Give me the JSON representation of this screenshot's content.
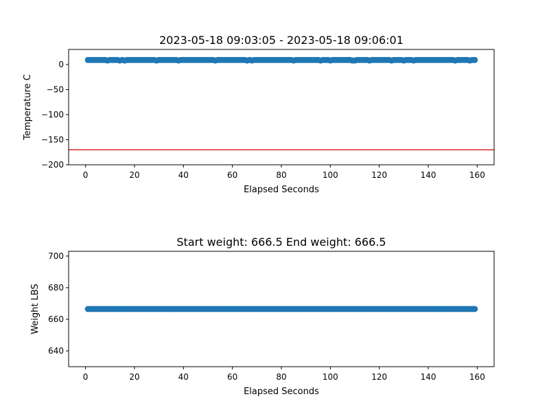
{
  "chart_data": [
    {
      "type": "scatter",
      "title": "2023-05-18 09:03:05 - 2023-05-18 09:06:01",
      "xlabel": "Elapsed Seconds",
      "ylabel": "Temperature C",
      "xlim": [
        -6.9,
        166.9
      ],
      "ylim": [
        -200,
        30
      ],
      "xticks": [
        0,
        20,
        40,
        60,
        80,
        100,
        120,
        140,
        160
      ],
      "yticks": [
        0,
        -50,
        -100,
        -150,
        -200
      ],
      "grid": false,
      "marker_color": "#1f77b4",
      "hline": {
        "y": -170,
        "color": "#d62728"
      },
      "x_start": 1,
      "x_end": 159,
      "values": [
        9,
        9,
        9,
        9,
        9,
        9,
        9,
        9,
        8,
        9,
        9,
        9,
        9,
        8,
        9,
        8,
        9,
        9,
        9,
        9,
        9,
        9,
        9,
        9,
        9,
        9,
        9,
        9,
        8,
        9,
        9,
        9,
        9,
        9,
        9,
        9,
        9,
        8,
        9,
        9,
        9,
        9,
        9,
        9,
        9,
        9,
        9,
        9,
        9,
        9,
        9,
        9,
        8,
        9,
        9,
        9,
        9,
        9,
        9,
        9,
        9,
        9,
        9,
        9,
        9,
        8,
        9,
        8,
        9,
        9,
        9,
        9,
        9,
        9,
        9,
        9,
        9,
        9,
        9,
        9,
        9,
        9,
        9,
        9,
        8,
        9,
        9,
        9,
        9,
        9,
        9,
        9,
        9,
        9,
        9,
        8,
        9,
        9,
        9,
        8,
        9,
        9,
        9,
        9,
        9,
        9,
        9,
        9,
        8,
        8,
        9,
        9,
        9,
        9,
        9,
        8,
        9,
        9,
        9,
        9,
        9,
        9,
        9,
        9,
        8,
        9,
        9,
        9,
        9,
        8,
        9,
        9,
        9,
        8,
        9,
        9,
        9,
        9,
        9,
        9,
        9,
        9,
        9,
        9,
        9,
        9,
        9,
        9,
        9,
        9,
        8,
        9,
        9,
        9,
        9,
        9,
        8,
        9,
        9
      ]
    },
    {
      "type": "scatter",
      "title": "Start weight: 666.5 End weight: 666.5",
      "xlabel": "Elapsed Seconds",
      "ylabel": "Weight LBS",
      "xlim": [
        -6.9,
        166.9
      ],
      "ylim": [
        630,
        703
      ],
      "xticks": [
        0,
        20,
        40,
        60,
        80,
        100,
        120,
        140,
        160
      ],
      "yticks": [
        640,
        660,
        680,
        700
      ],
      "grid": false,
      "marker_color": "#1f77b4",
      "x_start": 1,
      "x_end": 159,
      "constant_value": 666.5
    }
  ]
}
